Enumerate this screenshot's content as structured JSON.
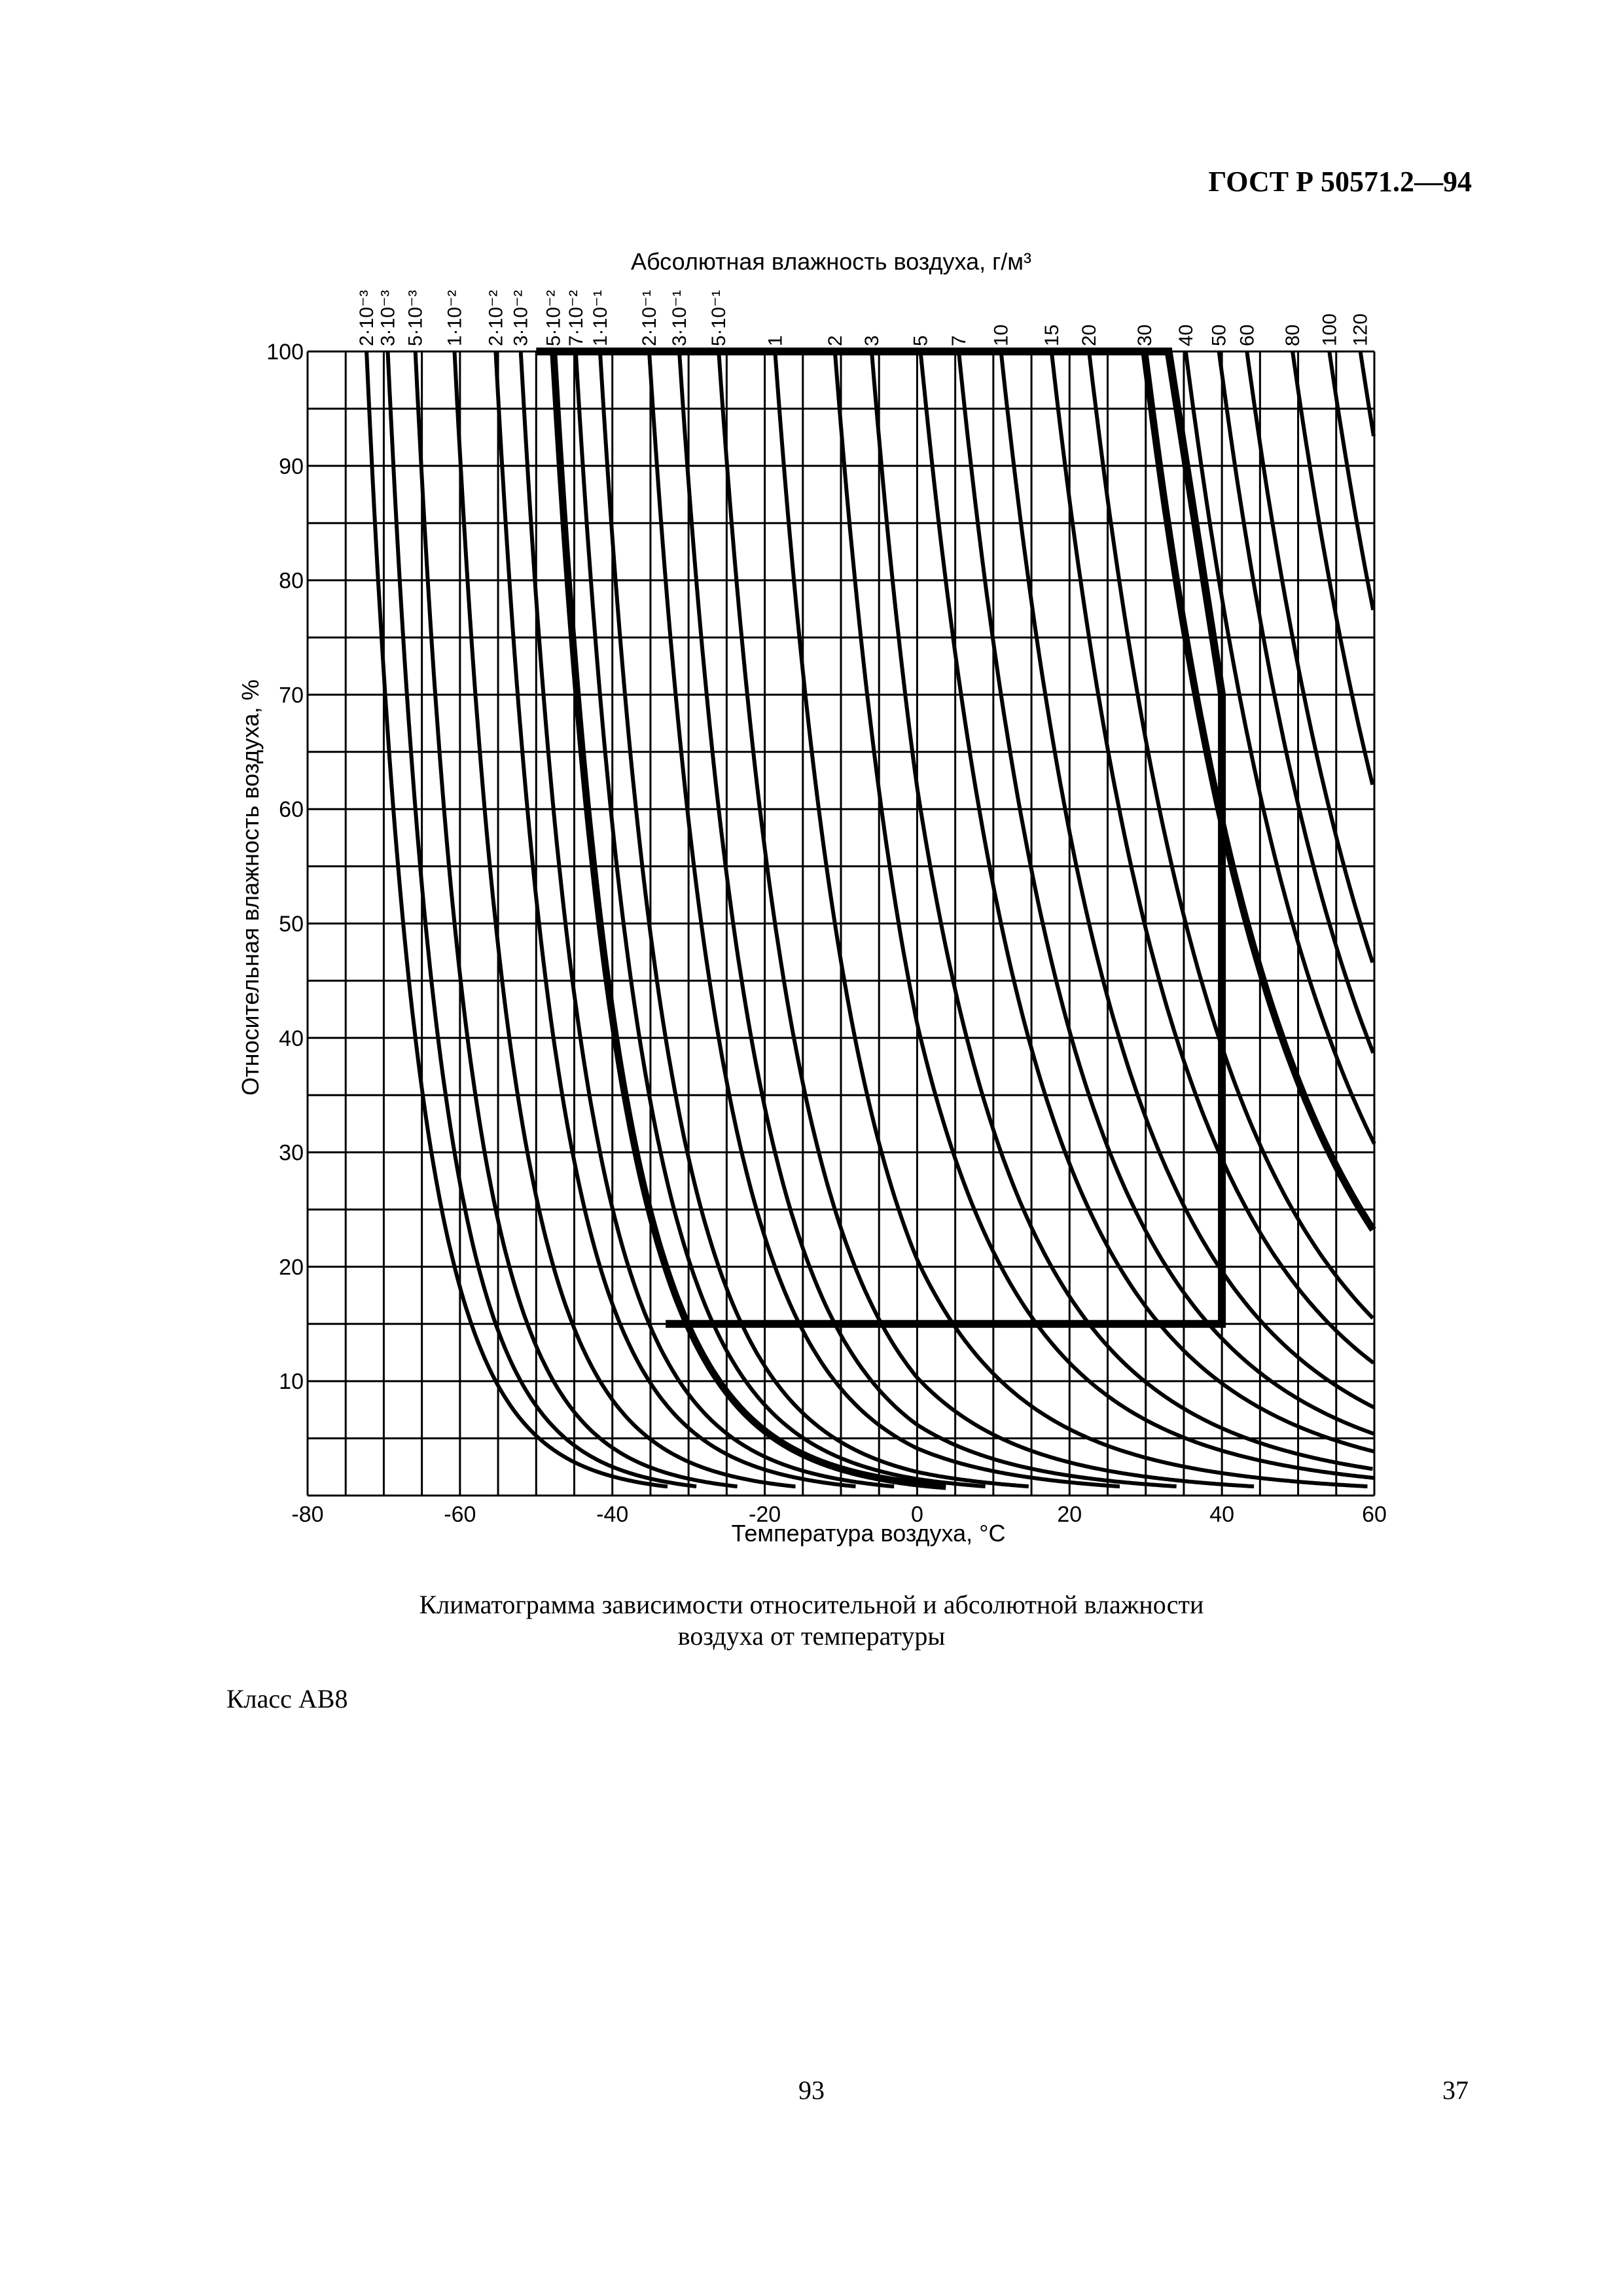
{
  "header": {
    "doc_code": "ГОСТ Р 50571.2—94"
  },
  "caption": {
    "line1": "Климатограмма зависимости относительной и абсолютной влажности",
    "line2": "воздуха от температуры"
  },
  "class_label": "Класс АВ8",
  "footer": {
    "page_center": "93",
    "page_right": "37"
  },
  "chart_data": {
    "type": "line",
    "title": "Абсолютная влажность воздуха, г/м³",
    "xlabel": "Температура воздуха, °С",
    "ylabel": "Относительная влажность воздуха, %",
    "xlim": [
      -80,
      60
    ],
    "ylim": [
      0,
      100
    ],
    "x_ticks": [
      -80,
      -60,
      -40,
      -20,
      0,
      20,
      40,
      60
    ],
    "y_ticks": [
      10,
      20,
      30,
      40,
      50,
      60,
      70,
      80,
      90,
      100
    ],
    "grid": true,
    "grid_x_step": 5,
    "grid_y_step": 5,
    "isolines_absolute_humidity": [
      {
        "label": "2·10⁻³",
        "value": 0.002
      },
      {
        "label": "3·10⁻³",
        "value": 0.003
      },
      {
        "label": "5·10⁻³",
        "value": 0.005
      },
      {
        "label": "1·10⁻²",
        "value": 0.01
      },
      {
        "label": "2·10⁻²",
        "value": 0.02
      },
      {
        "label": "3·10⁻²",
        "value": 0.03
      },
      {
        "label": "5·10⁻²",
        "value": 0.05
      },
      {
        "label": "7·10⁻²",
        "value": 0.07
      },
      {
        "label": "1·10⁻¹",
        "value": 0.1
      },
      {
        "label": "2·10⁻¹",
        "value": 0.2
      },
      {
        "label": "3·10⁻¹",
        "value": 0.3
      },
      {
        "label": "5·10⁻¹",
        "value": 0.5
      },
      {
        "label": "1",
        "value": 1
      },
      {
        "label": "2",
        "value": 2
      },
      {
        "label": "3",
        "value": 3
      },
      {
        "label": "5",
        "value": 5
      },
      {
        "label": "7",
        "value": 7
      },
      {
        "label": "10",
        "value": 10
      },
      {
        "label": "15",
        "value": 15
      },
      {
        "label": "20",
        "value": 20
      },
      {
        "label": "30",
        "value": 30
      },
      {
        "label": "40",
        "value": 40
      },
      {
        "label": "50",
        "value": 50
      },
      {
        "label": "60",
        "value": 60
      },
      {
        "label": "80",
        "value": 80
      },
      {
        "label": "100",
        "value": 100
      },
      {
        "label": "120",
        "value": 120
      }
    ],
    "bold_isolines": [
      0.05,
      30
    ],
    "climate_zone_boundary": [
      {
        "x": -50,
        "y": 100
      },
      {
        "x": 33,
        "y": 100
      },
      {
        "x": 40,
        "y": 70
      },
      {
        "x": 40,
        "y": 15
      },
      {
        "x": -33,
        "y": 15
      }
    ]
  }
}
